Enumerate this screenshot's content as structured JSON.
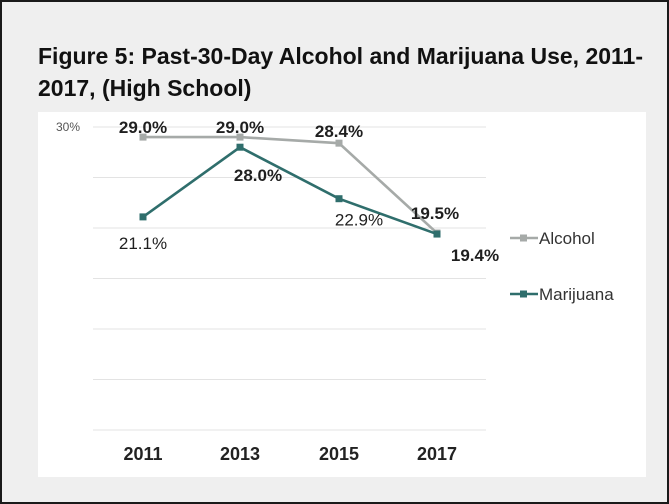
{
  "chart_data": {
    "type": "line",
    "title": "Figure 5: Past-30-Day Alcohol and Marijuana Use, 2011-2017,  (High School)",
    "categories": [
      "2011",
      "2013",
      "2015",
      "2017"
    ],
    "ylim": [
      0,
      30
    ],
    "ytick_labels": [
      "30%"
    ],
    "grid": true,
    "legend_position": "right",
    "series": [
      {
        "name": "Alcohol",
        "values": [
          29.0,
          29.0,
          28.4,
          19.5
        ],
        "labels": [
          "29.0%",
          "29.0%",
          "28.4%",
          "19.5%"
        ],
        "color": "#a6aaa8"
      },
      {
        "name": "Marijuana",
        "values": [
          21.1,
          28.0,
          22.9,
          19.4
        ],
        "labels": [
          "21.1%",
          "28.0%",
          "22.9%",
          "19.4%"
        ],
        "color": "#2f6e6c"
      }
    ]
  }
}
